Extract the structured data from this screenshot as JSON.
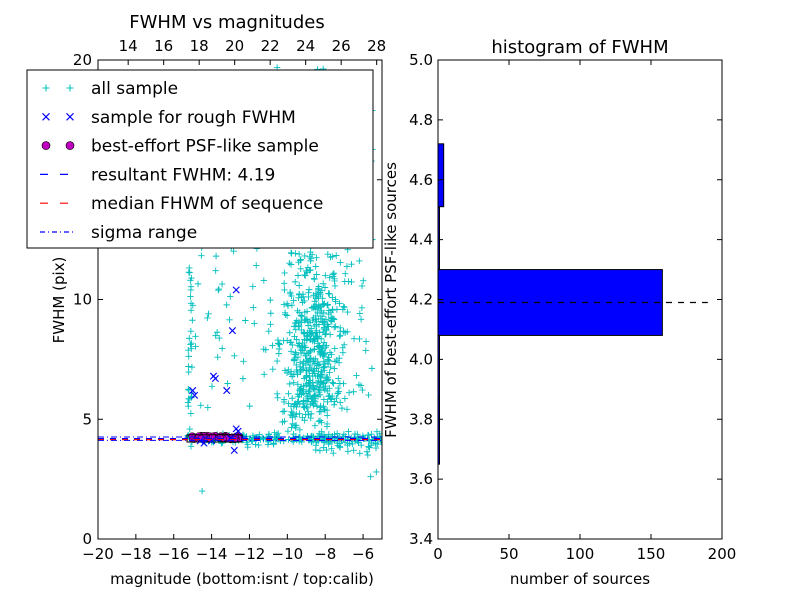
{
  "chart_data": [
    {
      "type": "scatter",
      "title": "FWHM vs magnitudes",
      "xlabel": "magnitude (bottom:isnt / top:calib)",
      "ylabel": "FWHM (pix)",
      "xlim": [
        -20,
        -5
      ],
      "ylim": [
        0,
        20
      ],
      "xticks": [
        "−20",
        "−18",
        "−16",
        "−14",
        "−12",
        "−10",
        "−8",
        "−6"
      ],
      "xticks_top": [
        "14",
        "16",
        "18",
        "20",
        "22",
        "24",
        "26",
        "28"
      ],
      "xticks_top_range": [
        12.3,
        28.3
      ],
      "yticks": [
        "0",
        "5",
        "10",
        "15",
        "20"
      ],
      "legend": {
        "placement": "upper-left",
        "entries": [
          {
            "label": "all sample",
            "marker": "+",
            "color": "#00bfbf"
          },
          {
            "label": "sample for rough FWHM",
            "marker": "x",
            "color": "#0000ff"
          },
          {
            "label": "best-effort PSF-like sample",
            "marker": "o",
            "color": "#bf00bf"
          },
          {
            "label": "resultant FWHM: 4.19",
            "marker": "dashed",
            "color": "#0000ff"
          },
          {
            "label": "median FHWM of sequence",
            "marker": "dashed",
            "color": "#ff0000"
          },
          {
            "label": "sigma range",
            "marker": "dashdot",
            "color": "#0000ff"
          }
        ]
      },
      "resultant_fwhm": 4.19,
      "median_fwhm": 4.15,
      "sigma_range": [
        4.12,
        4.26
      ],
      "selection_box": {
        "x": [
          -15.3,
          -12.4
        ],
        "y": [
          4.05,
          4.35
        ]
      },
      "colors": {
        "all_sample": "#00bfbf",
        "rough_sample": "#0000ff",
        "psf_sample": "#bf00bf"
      },
      "rough_sample": [
        {
          "x": -15.0,
          "y": 6.2
        },
        {
          "x": -14.9,
          "y": 6.0
        },
        {
          "x": -13.9,
          "y": 6.8
        },
        {
          "x": -13.8,
          "y": 6.7
        },
        {
          "x": -13.2,
          "y": 6.2
        },
        {
          "x": -12.9,
          "y": 8.7
        },
        {
          "x": -12.7,
          "y": 10.4
        },
        {
          "x": -12.8,
          "y": 3.7
        },
        {
          "x": -12.7,
          "y": 4.6
        },
        {
          "x": -14.4,
          "y": 4.0
        },
        {
          "x": -14.0,
          "y": 4.1
        },
        {
          "x": -13.0,
          "y": 4.2
        },
        {
          "x": -12.6,
          "y": 4.5
        },
        {
          "x": -14.6,
          "y": 4.1
        }
      ]
    },
    {
      "type": "bar",
      "orientation": "horizontal",
      "title": "histogram of FWHM",
      "xlabel": "number of sources",
      "ylabel": "FWHM of best-effort PSF-like sources",
      "xlim": [
        0,
        200
      ],
      "ylim": [
        3.4,
        5.0
      ],
      "xticks": [
        "0",
        "50",
        "100",
        "150",
        "200"
      ],
      "yticks": [
        "3.4",
        "3.6",
        "3.8",
        "4.0",
        "4.2",
        "4.4",
        "4.6",
        "4.8",
        "5.0"
      ],
      "bin_edges": [
        3.65,
        3.87,
        4.08,
        4.3,
        4.51,
        4.72
      ],
      "counts": [
        1,
        1,
        158,
        1,
        4
      ],
      "bar_color": "#0000ff",
      "reference_line": 4.19
    }
  ]
}
